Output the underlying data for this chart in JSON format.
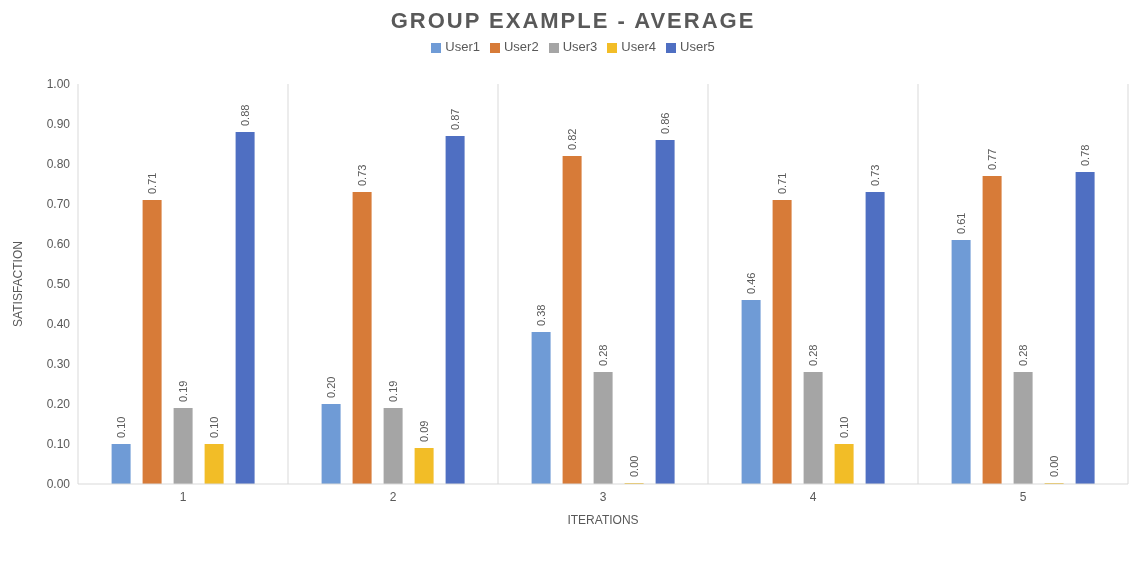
{
  "chart_data": {
    "type": "bar",
    "title": "GROUP EXAMPLE - AVERAGE",
    "xlabel": "ITERATIONS",
    "ylabel": "SATISFACTION",
    "categories": [
      "1",
      "2",
      "3",
      "4",
      "5"
    ],
    "series": [
      {
        "name": "User1",
        "color": "#6f9bd6",
        "values": [
          0.1,
          0.2,
          0.38,
          0.46,
          0.61
        ],
        "value_labels": [
          "0.10",
          "0.20",
          "0.38",
          "0.46",
          "0.61"
        ]
      },
      {
        "name": "User2",
        "color": "#d77b38",
        "values": [
          0.71,
          0.73,
          0.82,
          0.71,
          0.77
        ],
        "value_labels": [
          "0.71",
          "0.73",
          "0.82",
          "0.71",
          "0.77"
        ]
      },
      {
        "name": "User3",
        "color": "#a5a5a5",
        "values": [
          0.19,
          0.19,
          0.28,
          0.28,
          0.28
        ],
        "value_labels": [
          "0.19",
          "0.19",
          "0.28",
          "0.28",
          "0.28"
        ]
      },
      {
        "name": "User4",
        "color": "#f2bd27",
        "values": [
          0.1,
          0.09,
          0.0,
          0.1,
          0.0
        ],
        "value_labels": [
          "0.10",
          "0.09",
          "0.00",
          "0.10",
          "0.00"
        ]
      },
      {
        "name": "User5",
        "color": "#4f6fc2",
        "values": [
          0.88,
          0.87,
          0.86,
          0.73,
          0.78
        ],
        "value_labels": [
          "0.88",
          "0.87",
          "0.86",
          "0.73",
          "0.78"
        ]
      }
    ],
    "ylim": [
      0,
      1
    ],
    "yticks": [
      {
        "value": 0,
        "label": "0.00"
      },
      {
        "value": 0.1,
        "label": "0.10"
      },
      {
        "value": 0.2,
        "label": "0.20"
      },
      {
        "value": 0.3,
        "label": "0.30"
      },
      {
        "value": 0.4,
        "label": "0.40"
      },
      {
        "value": 0.5,
        "label": "0.50"
      },
      {
        "value": 0.6,
        "label": "0.60"
      },
      {
        "value": 0.7,
        "label": "0.70"
      },
      {
        "value": 0.8,
        "label": "0.80"
      },
      {
        "value": 0.9,
        "label": "0.90"
      },
      {
        "value": 1,
        "label": "1.00"
      }
    ],
    "grid": "x",
    "legend": "top"
  }
}
